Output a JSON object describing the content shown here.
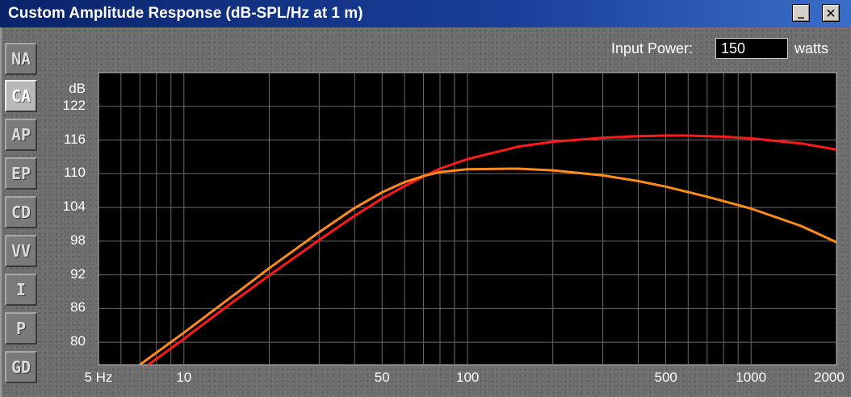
{
  "window": {
    "title": "Custom Amplitude Response (dB-SPL/Hz at 1 m)",
    "minimize_glyph": "_",
    "close_glyph": "✕"
  },
  "tabs": [
    {
      "label": "NA",
      "active": false
    },
    {
      "label": "CA",
      "active": true
    },
    {
      "label": "AP",
      "active": false
    },
    {
      "label": "EP",
      "active": false
    },
    {
      "label": "CD",
      "active": false
    },
    {
      "label": "VV",
      "active": false
    },
    {
      "label": "I",
      "active": false
    },
    {
      "label": "P",
      "active": false
    },
    {
      "label": "GD",
      "active": false
    }
  ],
  "input_power": {
    "label": "Input Power:",
    "value": "150",
    "unit": "watts"
  },
  "chart_data": {
    "type": "line",
    "title": "Custom Amplitude Response (dB-SPL/Hz at 1 m)",
    "ylabel": "dB",
    "xscale": "log",
    "xlim": [
      5,
      2000
    ],
    "ylim": [
      76,
      128
    ],
    "yticks": [
      80,
      86,
      92,
      98,
      104,
      110,
      116,
      122
    ],
    "xtick_labels": [
      {
        "value": 5,
        "label": "5 Hz"
      },
      {
        "value": 10,
        "label": "10"
      },
      {
        "value": 50,
        "label": "50"
      },
      {
        "value": 100,
        "label": "100"
      },
      {
        "value": 500,
        "label": "500"
      },
      {
        "value": 1000,
        "label": "1000"
      },
      {
        "value": 2000,
        "label": "2000"
      }
    ],
    "grid": true,
    "colors": {
      "background": "#000000",
      "grid": "#6a6a6a"
    },
    "series": [
      {
        "color": "#ff1a1a",
        "x": [
          7.5,
          10,
          15,
          20,
          30,
          40,
          50,
          60,
          70,
          80,
          100,
          150,
          200,
          300,
          400,
          500,
          600,
          800,
          1000,
          1500,
          2000
        ],
        "y": [
          76,
          80.6,
          87.3,
          91.9,
          98.2,
          102.5,
          105.6,
          107.8,
          109.5,
          110.9,
          112.6,
          114.8,
          115.7,
          116.4,
          116.7,
          116.8,
          116.8,
          116.6,
          116.3,
          115.4,
          114.3
        ]
      },
      {
        "color": "#ff8c1a",
        "x": [
          7,
          10,
          15,
          20,
          30,
          40,
          50,
          60,
          70,
          80,
          100,
          150,
          200,
          300,
          400,
          500,
          700,
          1000,
          1500,
          2000
        ],
        "y": [
          76,
          81.7,
          88.4,
          93.2,
          99.6,
          103.9,
          106.7,
          108.5,
          109.6,
          110.3,
          110.8,
          110.9,
          110.6,
          109.7,
          108.7,
          107.7,
          105.9,
          103.8,
          100.7,
          97.8
        ]
      }
    ]
  }
}
